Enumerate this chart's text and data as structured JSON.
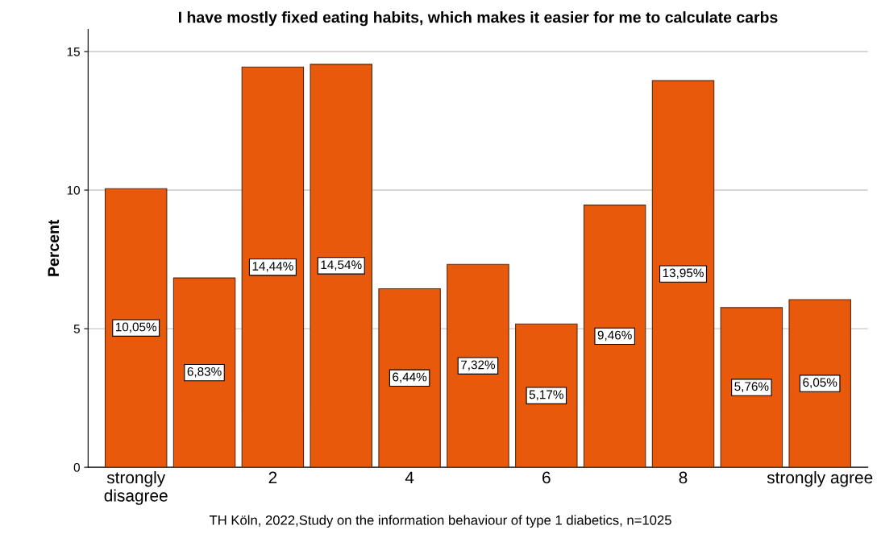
{
  "chart_data": {
    "type": "bar",
    "title": "I have mostly fixed eating habits, which makes it easier for me to calculate carbs",
    "ylabel": "Percent",
    "categories": [
      "strongly\ndisagree",
      null,
      "2",
      null,
      "4",
      null,
      "6",
      null,
      "8",
      null,
      "strongly agree"
    ],
    "values": [
      10.05,
      6.83,
      14.44,
      14.54,
      6.44,
      7.32,
      5.17,
      9.46,
      13.95,
      5.76,
      6.05
    ],
    "value_labels": [
      "10,05%",
      "6,83%",
      "14,44%",
      "14,54%",
      "6,44%",
      "7,32%",
      "5,17%",
      "9,46%",
      "13,95%",
      "5,76%",
      "6,05%"
    ],
    "color": "#e8590c",
    "ylim": [
      0,
      15.8
    ],
    "yticks": [
      0,
      5,
      10,
      15
    ],
    "grid": "y",
    "annotations": [
      "TH Köln, 2022,Study on the information behaviour of type 1 diabetics, n=1025"
    ]
  }
}
